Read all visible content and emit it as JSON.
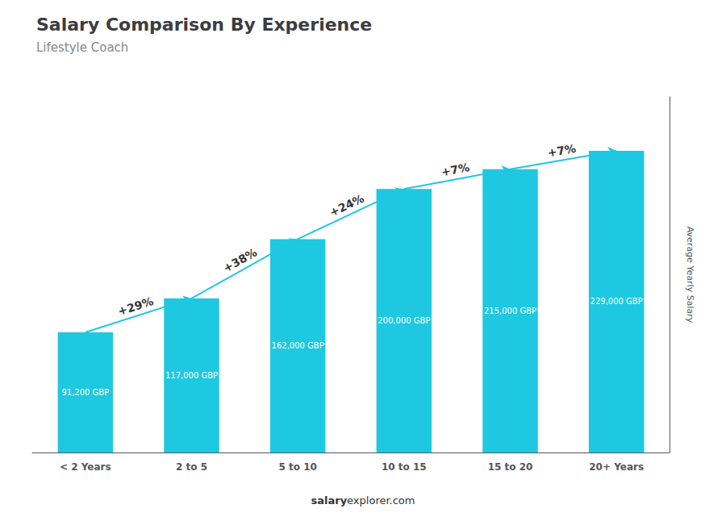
{
  "chart_data": {
    "type": "bar",
    "title": "Salary Comparison By Experience",
    "subtitle": "Lifestyle Coach",
    "categories": [
      "< 2 Years",
      "2 to 5",
      "5 to 10",
      "10 to 15",
      "15 to 20",
      "20+ Years"
    ],
    "values": [
      91200,
      117000,
      162000,
      200000,
      215000,
      229000
    ],
    "value_labels": [
      "91,200 GBP",
      "117,000 GBP",
      "162,000 GBP",
      "200,000 GBP",
      "215,000 GBP",
      "229,000 GBP"
    ],
    "data_labels": true,
    "color": "#1ec8e0",
    "ylabel": "Average Yearly Salary",
    "ylim": [
      0,
      270000
    ],
    "tick_labels": "x",
    "grid": false,
    "annotations": [
      "+29%",
      "+38%",
      "+24%",
      "+7%",
      "+7%"
    ],
    "footer": [
      "salary",
      "explorer.com"
    ]
  }
}
